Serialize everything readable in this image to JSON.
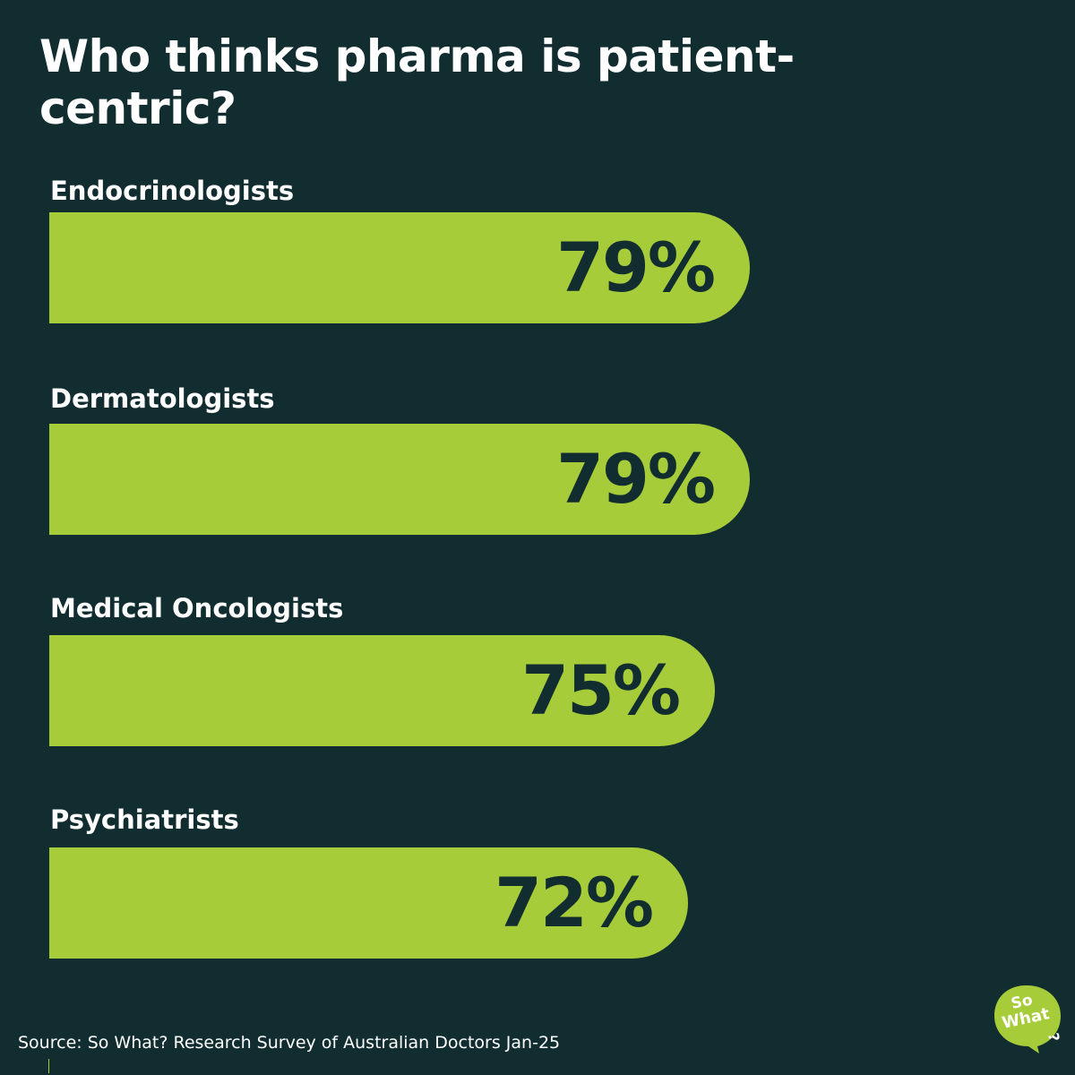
{
  "colors": {
    "background": "#112d30",
    "bar": "#a7cc3a",
    "text": "#ffffff",
    "bar_text": "#112d30"
  },
  "chart_data": {
    "type": "bar",
    "orientation": "horizontal",
    "title": "Who thinks pharma is patient-centric?",
    "categories": [
      "Endocrinologists",
      "Dermatologists",
      "Medical Oncologists",
      "Psychiatrists"
    ],
    "values": [
      79,
      79,
      75,
      72
    ],
    "value_labels": [
      "79%",
      "79%",
      "75%",
      "72%"
    ],
    "unit": "%",
    "xlim": [
      0,
      100
    ],
    "grid": false,
    "legend": "none"
  },
  "footer": {
    "source": "Source: So What? Research Survey of Australian Doctors Jan-25"
  },
  "logo": {
    "line1": "So",
    "line2": "What",
    "mark": "?"
  }
}
